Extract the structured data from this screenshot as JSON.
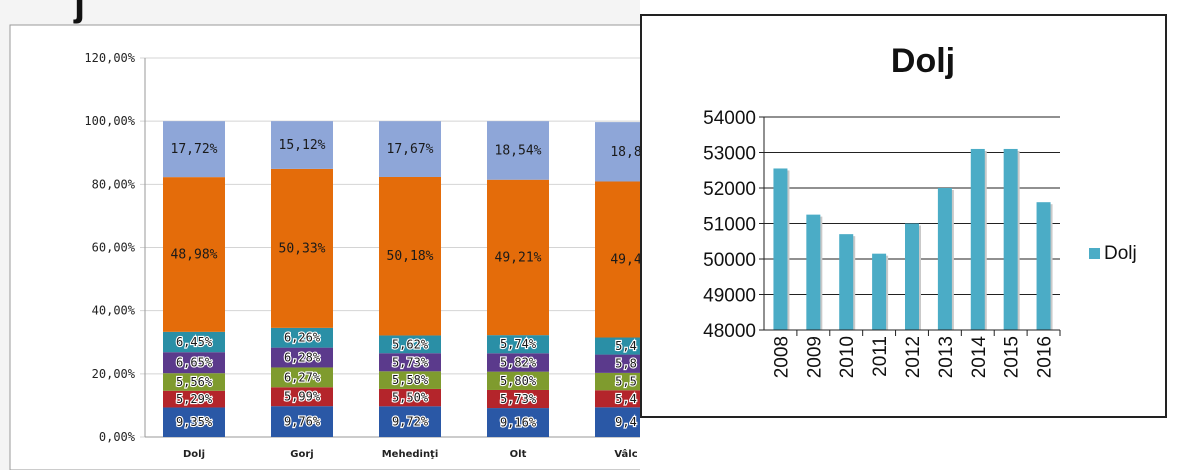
{
  "chart_data": [
    {
      "type": "bar",
      "stacked": true,
      "partial_heading": "j",
      "categories": [
        "Dolj",
        "Gorj",
        "Mehedinţi",
        "Olt",
        "Vâlc"
      ],
      "y_ticks": [
        "0,00%",
        "20,00%",
        "40,00%",
        "60,00%",
        "80,00%",
        "100,00%",
        "120,00%"
      ],
      "ylim": [
        0,
        120
      ],
      "grid": true,
      "series": [
        {
          "color": "#2a58a6",
          "values": [
            9.35,
            9.76,
            9.72,
            9.16,
            9.4
          ],
          "labels": [
            "9,35%",
            "9,76%",
            "9,72%",
            "9,16%",
            "9,4"
          ]
        },
        {
          "color": "#b4252b",
          "values": [
            5.29,
            5.99,
            5.5,
            5.73,
            5.4
          ],
          "labels": [
            "5,29%",
            "5,99%",
            "5,50%",
            "5,73%",
            "5,4"
          ]
        },
        {
          "color": "#7f9b2e",
          "values": [
            5.56,
            6.27,
            5.58,
            5.8,
            5.5
          ],
          "labels": [
            "5,56%",
            "6,27%",
            "5,58%",
            "5,80%",
            "5,5"
          ]
        },
        {
          "color": "#5b3a8c",
          "values": [
            6.65,
            6.28,
            5.73,
            5.82,
            5.8
          ],
          "labels": [
            "6,65%",
            "6,28%",
            "5,73%",
            "5,82%",
            "5,8"
          ]
        },
        {
          "color": "#2a8fa6",
          "values": [
            6.45,
            6.26,
            5.62,
            5.74,
            5.4
          ],
          "labels": [
            "6,45%",
            "6,26%",
            "5,62%",
            "5,74%",
            "5,4"
          ]
        },
        {
          "color": "#e46c0a",
          "values": [
            48.98,
            50.33,
            50.18,
            49.21,
            49.4
          ],
          "labels": [
            "48,98%",
            "50,33%",
            "50,18%",
            "49,21%",
            "49,4"
          ]
        },
        {
          "color": "#8ea6d8",
          "values": [
            17.72,
            15.12,
            17.67,
            18.54,
            18.8
          ],
          "labels": [
            "17,72%",
            "15,12%",
            "17,67%",
            "18,54%",
            "18,8"
          ]
        }
      ]
    },
    {
      "type": "bar",
      "title": "Dolj",
      "categories": [
        "2008",
        "2009",
        "2010",
        "2011",
        "2012",
        "2013",
        "2014",
        "2015",
        "2016"
      ],
      "series": [
        {
          "name": "Dolj",
          "color": "#4bacc6",
          "values": [
            52550,
            51250,
            50700,
            50150,
            51000,
            52000,
            53100,
            53100,
            51600
          ]
        }
      ],
      "y_ticks": [
        "48000",
        "49000",
        "50000",
        "51000",
        "52000",
        "53000",
        "54000"
      ],
      "ylim": [
        48000,
        54000
      ],
      "grid": true,
      "legend": "right"
    }
  ]
}
